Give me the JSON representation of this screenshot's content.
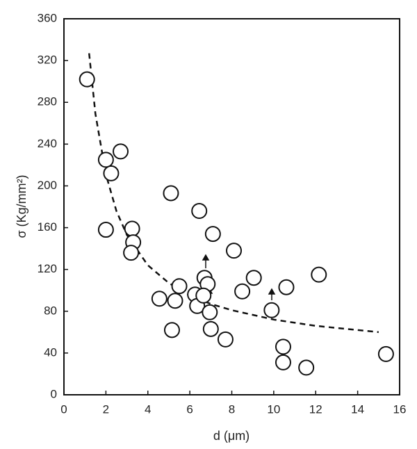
{
  "chart_data": {
    "type": "scatter",
    "x_label": "d (μm)",
    "y_label": "σ (Kg/mm²)",
    "x": [
      1.1,
      2.0,
      2.25,
      2.7,
      2.0,
      3.25,
      3.3,
      3.2,
      5.1,
      6.45,
      7.1,
      8.1,
      9.05,
      8.5,
      12.15,
      9.9,
      10.6,
      4.55,
      5.3,
      5.5,
      6.25,
      6.35,
      6.7,
      6.85,
      6.65,
      6.95,
      7.0,
      5.15,
      7.7,
      10.45,
      10.45,
      11.55,
      15.35
    ],
    "values": [
      302,
      225,
      212,
      233,
      158,
      159,
      146,
      136,
      193,
      176,
      154,
      138,
      112,
      99,
      115,
      81,
      103,
      92,
      90,
      104,
      96,
      85,
      112,
      106,
      95,
      79,
      63,
      62,
      53,
      46,
      31,
      26,
      39
    ],
    "color": "#111111",
    "fit": {
      "x": [
        1.2,
        1.5,
        2,
        2.5,
        3,
        4,
        5,
        6,
        7,
        8,
        10,
        12,
        15
      ],
      "values": [
        327,
        269,
        211,
        176,
        153,
        124,
        107,
        95,
        87,
        81,
        72,
        66,
        60
      ],
      "dashed": true
    },
    "xlim": [
      0,
      16
    ],
    "xticks": [
      0,
      2,
      4,
      6,
      8,
      10,
      12,
      14,
      16
    ],
    "ylim": [
      0,
      360
    ],
    "yticks": [
      0,
      40,
      80,
      120,
      160,
      200,
      240,
      280,
      320,
      360
    ]
  }
}
